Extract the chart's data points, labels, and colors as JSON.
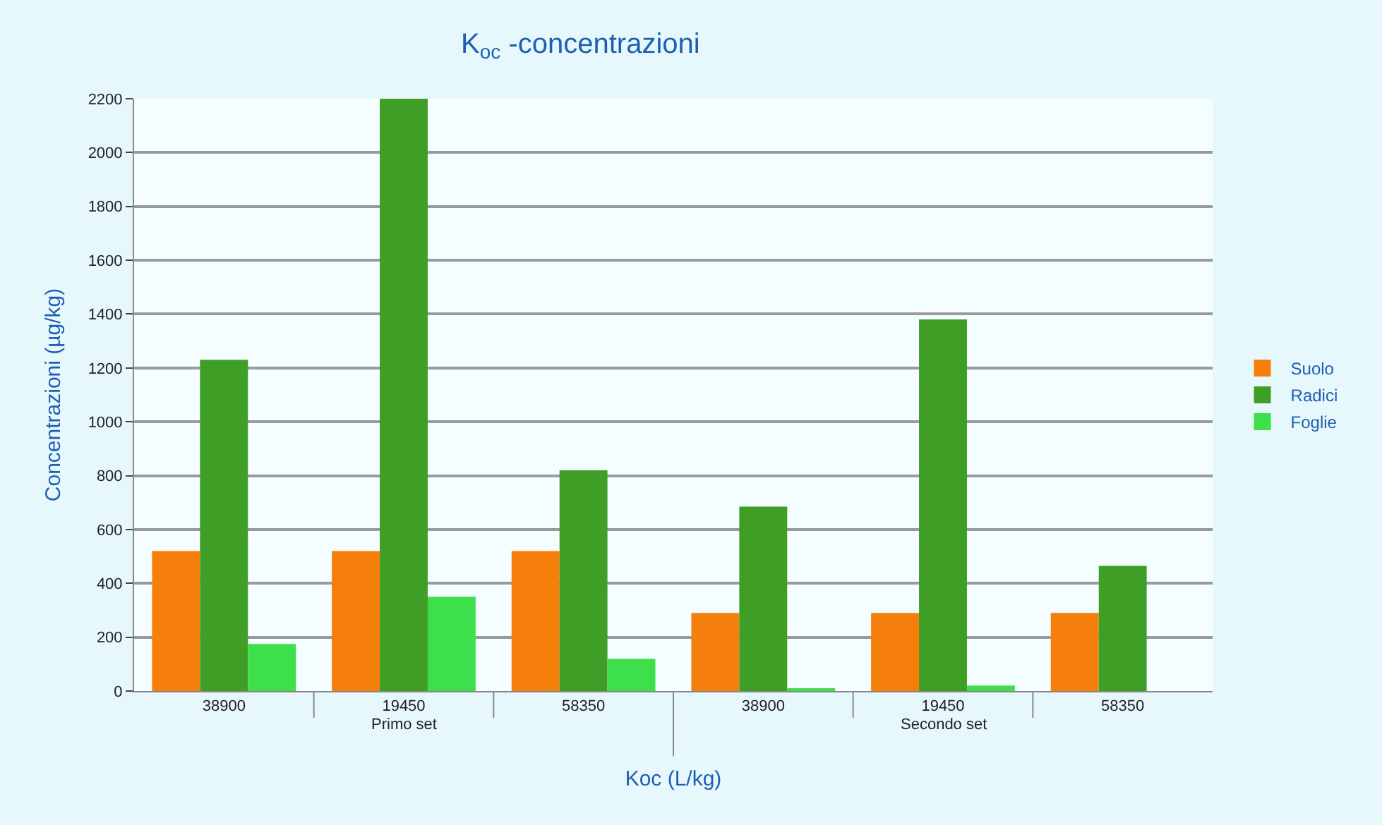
{
  "chart_data": {
    "type": "bar",
    "title": "K$_{oc}$ -concentrazioni",
    "xlabel": "Koc (L/kg)",
    "ylabel": "Concentrazioni (µg/kg)",
    "categories": [
      "38900",
      "19450",
      "58350",
      "38900",
      "19450",
      "58350"
    ],
    "annotations": [
      "Primo set",
      "Secondo set"
    ],
    "series": [
      {
        "name": "Suolo",
        "color": "#f57f0a",
        "values": [
          520,
          520,
          520,
          290,
          290,
          290
        ]
      },
      {
        "name": "Radici",
        "color": "#3f9e26",
        "values": [
          1230,
          2200,
          820,
          685,
          1380,
          465
        ]
      },
      {
        "name": "Foglie",
        "color": "#3de04a",
        "values": [
          175,
          350,
          120,
          10,
          20,
          0
        ]
      }
    ],
    "ylim": [
      0,
      2200
    ],
    "yticks": [
      0,
      200,
      400,
      600,
      800,
      1000,
      1200,
      1400,
      1600,
      1800,
      2000,
      2200
    ],
    "grid": "y",
    "legend": "right"
  }
}
